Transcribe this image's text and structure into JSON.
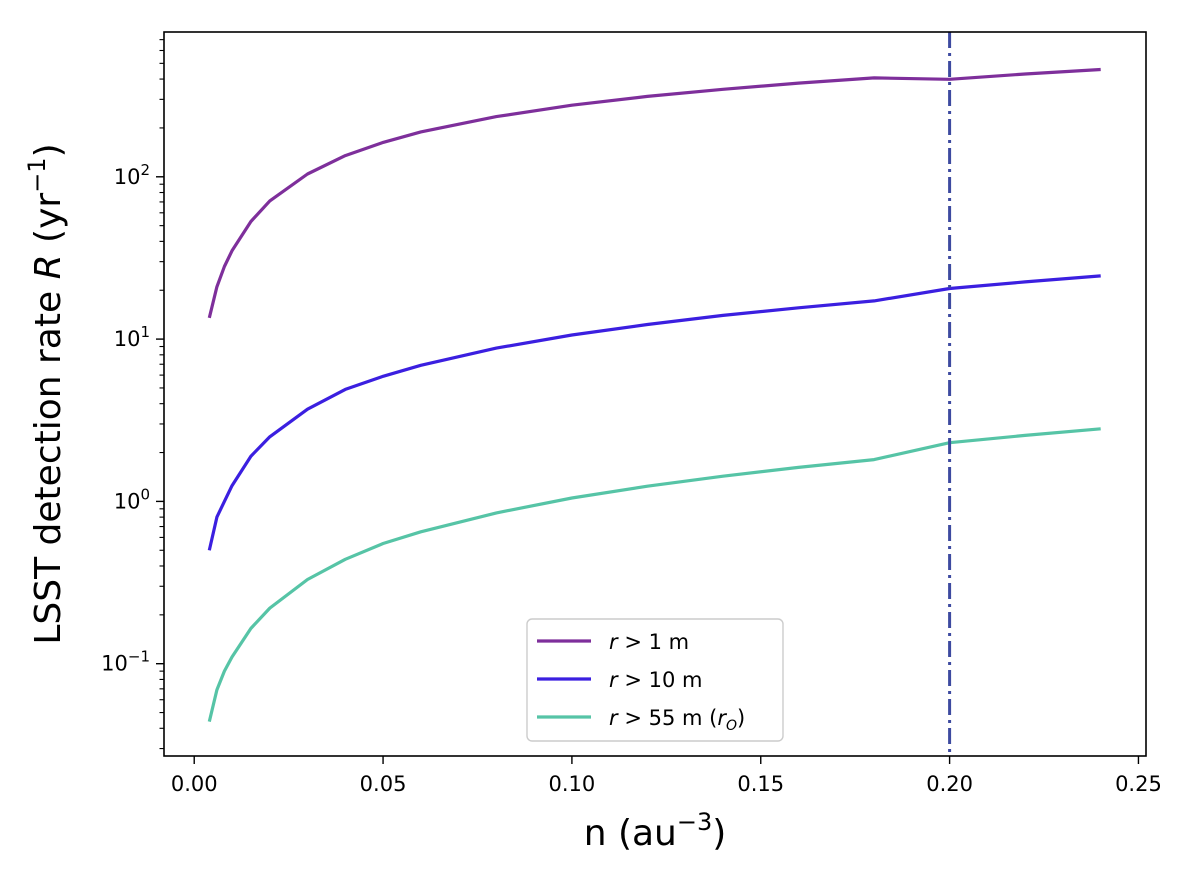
{
  "chart_data": {
    "type": "line",
    "title": "",
    "xlabel": {
      "base": "n (au",
      "sup": "−3",
      "close": ")"
    },
    "ylabel": {
      "pre": "LSST detection rate ",
      "var": "R",
      "mid": " (yr",
      "sup": "−1",
      "close": ")"
    },
    "xlim": [
      -0.008,
      0.252
    ],
    "ylim": [
      0.027,
      780
    ],
    "yscale": "log",
    "x_ticks": [
      {
        "value": 0.0,
        "label": "0.00"
      },
      {
        "value": 0.05,
        "label": "0.05"
      },
      {
        "value": 0.1,
        "label": "0.10"
      },
      {
        "value": 0.15,
        "label": "0.15"
      },
      {
        "value": 0.2,
        "label": "0.20"
      },
      {
        "value": 0.25,
        "label": "0.25"
      }
    ],
    "y_ticks": [
      {
        "value": 0.1,
        "base": "10",
        "exp": "−1"
      },
      {
        "value": 1,
        "base": "10",
        "exp": "0"
      },
      {
        "value": 10,
        "base": "10",
        "exp": "1"
      },
      {
        "value": 100,
        "base": "10",
        "exp": "2"
      }
    ],
    "grid": false,
    "legend_position": "bottom-center",
    "vline": {
      "x": 0.2,
      "color": "#3d4aa0",
      "style": "dash-dot"
    },
    "x": [
      0.004,
      0.006,
      0.008,
      0.01,
      0.015,
      0.02,
      0.03,
      0.04,
      0.05,
      0.06,
      0.08,
      0.1,
      0.12,
      0.14,
      0.16,
      0.18,
      0.2,
      0.22,
      0.24
    ],
    "series": [
      {
        "legend": {
          "var": "r",
          "text": " > 1 m",
          "sub_var": "",
          "sub": ""
        },
        "color": "#7e2f9b",
        "values": [
          13.5,
          21,
          28,
          35,
          53,
          71,
          104,
          135,
          163,
          189,
          235,
          276,
          313,
          346,
          378,
          407,
          399,
          430,
          458
        ]
      },
      {
        "legend": {
          "var": "r",
          "text": " > 10 m",
          "sub_var": "",
          "sub": ""
        },
        "color": "#3b1fe0",
        "values": [
          0.5,
          0.8,
          1.0,
          1.25,
          1.9,
          2.5,
          3.7,
          4.9,
          5.9,
          6.9,
          8.8,
          10.6,
          12.3,
          14.0,
          15.6,
          17.2,
          20.5,
          22.5,
          24.5
        ]
      },
      {
        "legend": {
          "var": "r",
          "text": " > 55 m (",
          "sub_var": "r",
          "sub": "O",
          "close": ")"
        },
        "color": "#56c4a6",
        "values": [
          0.044,
          0.069,
          0.09,
          0.11,
          0.165,
          0.22,
          0.33,
          0.44,
          0.55,
          0.65,
          0.85,
          1.05,
          1.24,
          1.43,
          1.62,
          1.81,
          2.3,
          2.55,
          2.8
        ]
      }
    ]
  }
}
